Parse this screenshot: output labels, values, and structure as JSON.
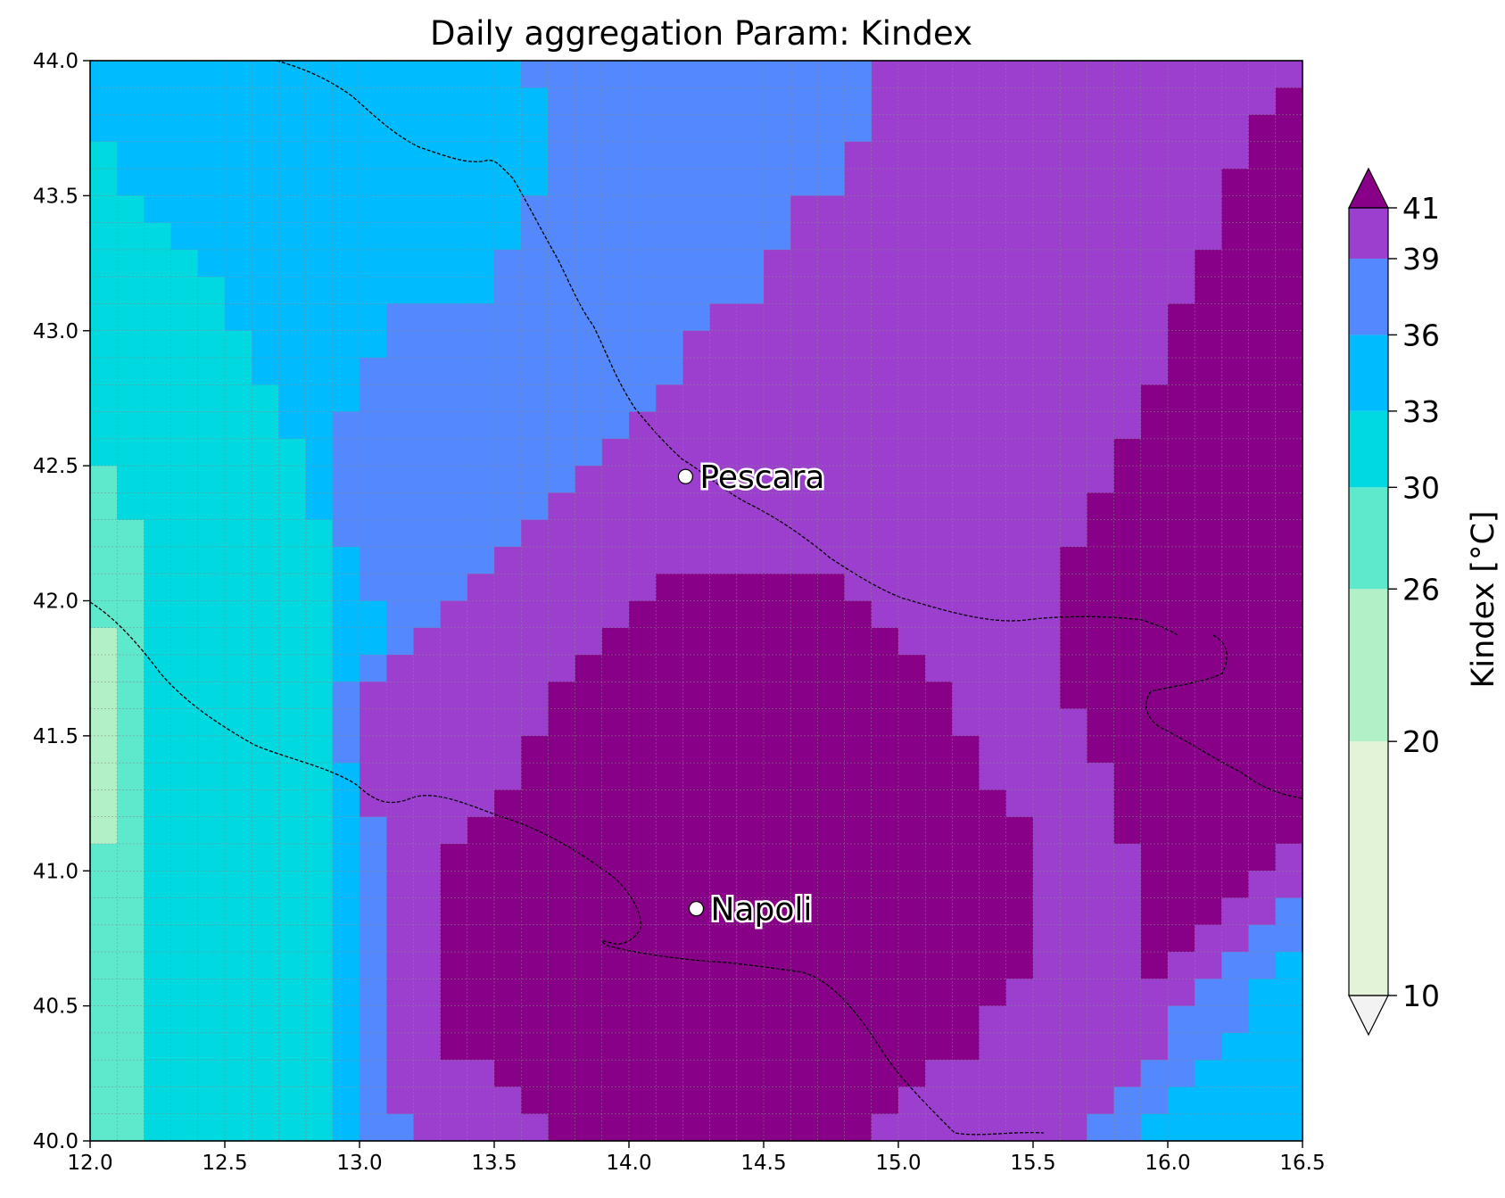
{
  "chart_data": {
    "type": "heatmap",
    "title": "Daily aggregation Param: Kindex",
    "xlabel": "",
    "ylabel": "",
    "xlim": [
      12.0,
      16.5
    ],
    "ylim": [
      40.0,
      44.0
    ],
    "xticks": [
      "12.0",
      "12.5",
      "13.0",
      "13.5",
      "14.0",
      "14.5",
      "15.0",
      "15.5",
      "16.0",
      "16.5"
    ],
    "yticks": [
      "40.0",
      "40.5",
      "41.0",
      "41.5",
      "42.0",
      "42.5",
      "43.0",
      "43.5",
      "44.0"
    ],
    "grid": true,
    "grid_resolution_deg": 0.1,
    "colorbar": {
      "label": "Kindex  [°C]",
      "extend": "both",
      "levels": [
        10,
        20,
        26,
        30,
        33,
        36,
        39,
        41
      ],
      "tick_labels": [
        "10",
        "20",
        "26",
        "30",
        "33",
        "36",
        "39",
        "41"
      ],
      "colors": [
        "#e3f3d8",
        "#b2f0c8",
        "#5ee9cc",
        "#00d9e0",
        "#00bcff",
        "#5488ff",
        "#9c3fcf",
        "#870087"
      ],
      "under_color": "#f2f2f2",
      "over_color": "#870087"
    },
    "classes_by_region_note_free": true,
    "rows_lat_top_to_bottom": [
      "444444444444444455555555555556666666666666666",
      "444444444444444445555555555556666666666666667",
      "444444444444444445555555555556666666666666677",
      "344444444444444445555555555566666666666666677",
      "344444444444444445555555555566666666666666777",
      "334444444444444455555555556666666666666666777",
      "333444444444444455555555556666666666666666777",
      "333344444444444555555555566666666666666667777",
      "333334444444444555555555566666666666666667777",
      "333334444445555555555556666666666666666677777",
      "333333444445555555555566666666666666666677777",
      "333333444455555555555566666666666666666677777",
      "333333344455555555555666666666666666666777777",
      "333333344555555555556666666666666666666777777",
      "333333334555555555566666666666666666667777777",
      "233333334555555555666666666666666666667777777",
      "233333334555555556666666666666666666677777777",
      "223333333555555566666666666666666666677777777",
      "223333333455555666666666666666666666777777777",
      "223333333455556666666777777766666666777777777",
      "223333333445566666667777777776666666777777777",
      "123333333445666666677777777777666666777777777",
      "123333333456666666777777777777766666777777777",
      "123333333566666667777777777777776666777777777",
      "123333333566666667777777777777776666677777777",
      "123333333566666677777777777777777666677777777",
      "123333333466666677777777777777777666667777777",
      "123333333466666777777777777777777766667777777",
      "123333333456667777777777777777777776667777777",
      "223333333456677777777777777777777776666777776",
      "223333333456677777777777777777777776666777766",
      "223333333456677777777777777777777776666777665",
      "223333333456677777777777777777777776666776655",
      "223333333456677777777777777777777776666766554",
      "223333333456677777777777777777777766666665544",
      "223333333456677777777777777777777666666655544",
      "223333333456677777777777777777777666666655444",
      "223333333456666777777777777777766666666554444",
      "223333333456666677777777777777666666665544444",
      "223333333455666667777777777776666666655444444"
    ],
    "cities": [
      {
        "name": "Pescara",
        "lon": 14.21,
        "lat": 42.46
      },
      {
        "name": "Napoli",
        "lon": 14.25,
        "lat": 40.86
      }
    ]
  }
}
